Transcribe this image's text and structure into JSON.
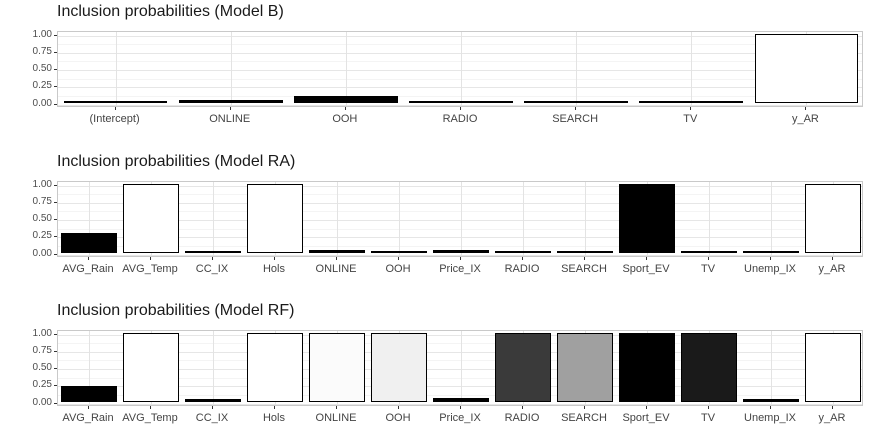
{
  "page": {
    "background": "#ffffff"
  },
  "chart_data": [
    {
      "type": "bar",
      "title": "Inclusion probabilities (Model B)",
      "xlabel": "",
      "ylabel": "",
      "ylim": [
        0,
        1
      ],
      "yticks": [
        0,
        0.25,
        0.5,
        0.75,
        1
      ],
      "ytick_labels": [
        "0.00",
        "0.25",
        "0.50",
        "0.75",
        "1.00"
      ],
      "minor_yticks": [
        0.125,
        0.375,
        0.625,
        0.875
      ],
      "grid": "on",
      "legend": "none",
      "categories": [
        "(Intercept)",
        "ONLINE",
        "OOH",
        "RADIO",
        "SEARCH",
        "TV",
        "y_AR"
      ],
      "values": [
        0.01,
        0.04,
        0.1,
        0.02,
        0.02,
        0.02,
        1.0
      ],
      "bar_fills": [
        "#000000",
        "#000000",
        "#000000",
        "#000000",
        "#000000",
        "#000000",
        "#ffffff"
      ],
      "bar_border_color": "#000000"
    },
    {
      "type": "bar",
      "title": "Inclusion probabilities (Model RA)",
      "xlabel": "",
      "ylabel": "",
      "ylim": [
        0,
        1
      ],
      "yticks": [
        0,
        0.25,
        0.5,
        0.75,
        1
      ],
      "ytick_labels": [
        "0.00",
        "0.25",
        "0.50",
        "0.75",
        "1.00"
      ],
      "minor_yticks": [
        0.125,
        0.375,
        0.625,
        0.875
      ],
      "grid": "on",
      "legend": "none",
      "categories": [
        "AVG_Rain",
        "AVG_Temp",
        "CC_IX",
        "Hols",
        "ONLINE",
        "OOH",
        "Price_IX",
        "RADIO",
        "SEARCH",
        "Sport_EV",
        "TV",
        "Unemp_IX",
        "y_AR"
      ],
      "values": [
        0.28,
        1.0,
        0.015,
        1.0,
        0.04,
        0.02,
        0.03,
        0.015,
        0.02,
        1.0,
        0.02,
        0.015,
        1.0
      ],
      "bar_fills": [
        "#000000",
        "#ffffff",
        "#000000",
        "#ffffff",
        "#000000",
        "#000000",
        "#000000",
        "#000000",
        "#000000",
        "#000000",
        "#000000",
        "#000000",
        "#ffffff"
      ],
      "bar_border_color": "#000000"
    },
    {
      "type": "bar",
      "title": "Inclusion probabilities (Model RF)",
      "xlabel": "",
      "ylabel": "",
      "ylim": [
        0,
        1
      ],
      "yticks": [
        0,
        0.25,
        0.5,
        0.75,
        1
      ],
      "ytick_labels": [
        "0.00",
        "0.25",
        "0.50",
        "0.75",
        "1.00"
      ],
      "minor_yticks": [
        0.125,
        0.375,
        0.625,
        0.875
      ],
      "grid": "on",
      "legend": "none",
      "categories": [
        "AVG_Rain",
        "AVG_Temp",
        "CC_IX",
        "Hols",
        "ONLINE",
        "OOH",
        "Price_IX",
        "RADIO",
        "SEARCH",
        "Sport_EV",
        "TV",
        "Unemp_IX",
        "y_AR"
      ],
      "values": [
        0.22,
        1.0,
        0.03,
        1.0,
        1.0,
        1.0,
        0.05,
        1.0,
        1.0,
        1.0,
        1.0,
        0.04,
        1.0
      ],
      "bar_fills": [
        "#000000",
        "#ffffff",
        "#000000",
        "#ffffff",
        "#fbfbfb",
        "#f0f0f0",
        "#000000",
        "#3a3a3a",
        "#a0a0a0",
        "#000000",
        "#1a1a1a",
        "#000000",
        "#ffffff"
      ],
      "bar_border_color": "#000000"
    }
  ],
  "style_colors": {
    "panel_border": "#c9c9c9",
    "grid_major": "#e6e6e6",
    "grid_minor": "#f4f4f4",
    "axis_text": "#4d4d4d",
    "title_text": "#1a1a1a",
    "tick_mark": "#333333"
  }
}
